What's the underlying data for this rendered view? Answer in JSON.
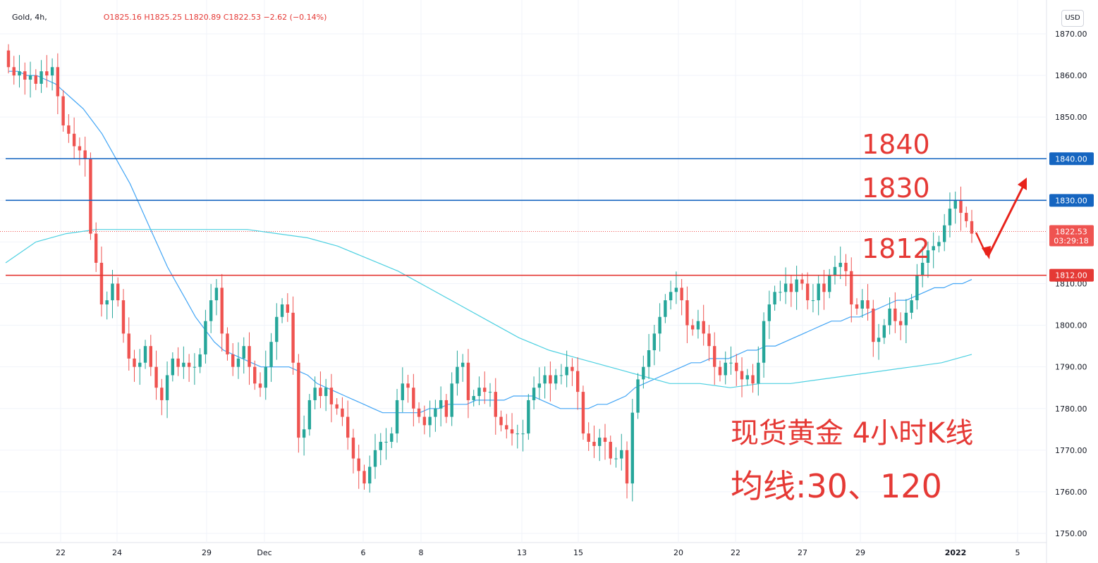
{
  "header": {
    "symbol": "Gold, 4h,",
    "ohlc": "O1825.16  H1825.25  L1820.89  C1822.53  −2.62 (−0.14%)"
  },
  "currency_label": "USD",
  "price_axis": {
    "ticks": [
      "1870.00",
      "1860.00",
      "1850.00",
      "1840.00",
      "1830.00",
      "1820.00",
      "1810.00",
      "1800.00",
      "1790.00",
      "1780.00",
      "1770.00",
      "1760.00",
      "1750.00"
    ],
    "price_label": "1822.53",
    "countdown": "03:29:18"
  },
  "time_axis": {
    "labels": [
      "22",
      "24",
      "29",
      "Dec",
      "6",
      "8",
      "13",
      "15",
      "20",
      "22",
      "27",
      "29",
      "2022",
      "5"
    ]
  },
  "levels": [
    {
      "value": 1840,
      "text": "1840",
      "axis_text": "1840.00",
      "color": "#1565c0"
    },
    {
      "value": 1830,
      "text": "1830",
      "axis_text": "1830.00",
      "color": "#1565c0"
    },
    {
      "value": 1812,
      "text": "1812",
      "axis_text": "1812.00",
      "color": "#e53935"
    }
  ],
  "annotations": {
    "title": "现货黄金 4小时K线",
    "ma_note": "均线:30、120"
  },
  "colors": {
    "up": "#26a69a",
    "down": "#ef5350",
    "ma30": "#42a5f5",
    "ma120": "#4dd0e1",
    "text_red": "#e53935"
  },
  "chart_data": {
    "type": "candlestick",
    "ylim": [
      1748,
      1873
    ],
    "x_labels": [
      "22",
      "24",
      "29",
      "Dec",
      "6",
      "8",
      "13",
      "15",
      "20",
      "22",
      "27",
      "29",
      "2022",
      "5"
    ],
    "closes_by_bar": [
      1862,
      1860,
      1861,
      1859,
      1860,
      1858,
      1861,
      1860,
      1862,
      1855,
      1848,
      1846,
      1843,
      1842,
      1840,
      1822,
      1815,
      1805,
      1806,
      1810,
      1806,
      1798,
      1792,
      1790,
      1791,
      1795,
      1790,
      1785,
      1782,
      1788,
      1792,
      1790,
      1791,
      1790,
      1790,
      1793,
      1801,
      1806,
      1809,
      1798,
      1793,
      1790,
      1792,
      1795,
      1790,
      1786,
      1785,
      1790,
      1796,
      1802,
      1805,
      1803,
      1791,
      1773,
      1775,
      1782,
      1785,
      1783,
      1785,
      1781,
      1780,
      1778,
      1773,
      1768,
      1765,
      1762,
      1766,
      1770,
      1772,
      1772,
      1774,
      1782,
      1786,
      1785,
      1780,
      1778,
      1776,
      1778,
      1780,
      1782,
      1778,
      1786,
      1790,
      1791,
      1782,
      1783,
      1785,
      1784,
      1784,
      1778,
      1776,
      1775,
      1774,
      1774,
      1774,
      1782,
      1785,
      1786,
      1788,
      1786,
      1788,
      1788,
      1790,
      1789,
      1784,
      1774,
      1772,
      1771,
      1773,
      1772,
      1768,
      1768,
      1770,
      1762,
      1779,
      1787,
      1790,
      1794,
      1798,
      1802,
      1806,
      1808,
      1809,
      1806,
      1800,
      1799,
      1801,
      1798,
      1795,
      1790,
      1788,
      1791,
      1791,
      1789,
      1787,
      1788,
      1786,
      1791,
      1801,
      1805,
      1808,
      1808,
      1810,
      1808,
      1811,
      1810,
      1806,
      1806,
      1810,
      1808,
      1812,
      1814,
      1815,
      1813,
      1805,
      1804,
      1806,
      1804,
      1796,
      1797,
      1800,
      1804,
      1801,
      1800,
      1803,
      1806,
      1812,
      1815,
      1818,
      1819,
      1820,
      1824,
      1828,
      1830,
      1827,
      1825,
      1822
    ],
    "ma30": [
      1861,
      1861,
      1860,
      1860,
      1859,
      1858,
      1856,
      1854,
      1852,
      1849,
      1846,
      1842,
      1838,
      1834,
      1829,
      1824,
      1819,
      1814,
      1810,
      1806,
      1802,
      1799,
      1796,
      1794,
      1793,
      1792,
      1791,
      1790,
      1790,
      1790,
      1790,
      1789,
      1788,
      1786,
      1785,
      1784,
      1783,
      1782,
      1781,
      1780,
      1779,
      1779,
      1779,
      1779,
      1779,
      1780,
      1780,
      1781,
      1781,
      1781,
      1782,
      1782,
      1782,
      1782,
      1783,
      1783,
      1783,
      1782,
      1781,
      1780,
      1780,
      1780,
      1780,
      1781,
      1781,
      1782,
      1783,
      1785,
      1786,
      1787,
      1788,
      1789,
      1790,
      1791,
      1791,
      1792,
      1792,
      1792,
      1793,
      1794,
      1794,
      1795,
      1795,
      1796,
      1797,
      1798,
      1799,
      1800,
      1801,
      1801,
      1802,
      1802,
      1803,
      1804,
      1805,
      1806,
      1806,
      1807,
      1808,
      1809,
      1809,
      1810,
      1810,
      1811
    ],
    "ma120": [
      1815,
      1820,
      1822,
      1823,
      1823,
      1823,
      1823,
      1823,
      1823,
      1822,
      1821,
      1819,
      1816,
      1813,
      1809,
      1805,
      1801,
      1797,
      1794,
      1792,
      1790,
      1788,
      1786,
      1786,
      1785,
      1786,
      1786,
      1787,
      1788,
      1789,
      1790,
      1791,
      1793
    ],
    "levels": [
      1840,
      1830,
      1812
    ],
    "last": {
      "open": 1825.16,
      "high": 1825.25,
      "low": 1820.89,
      "close": 1822.53
    }
  }
}
